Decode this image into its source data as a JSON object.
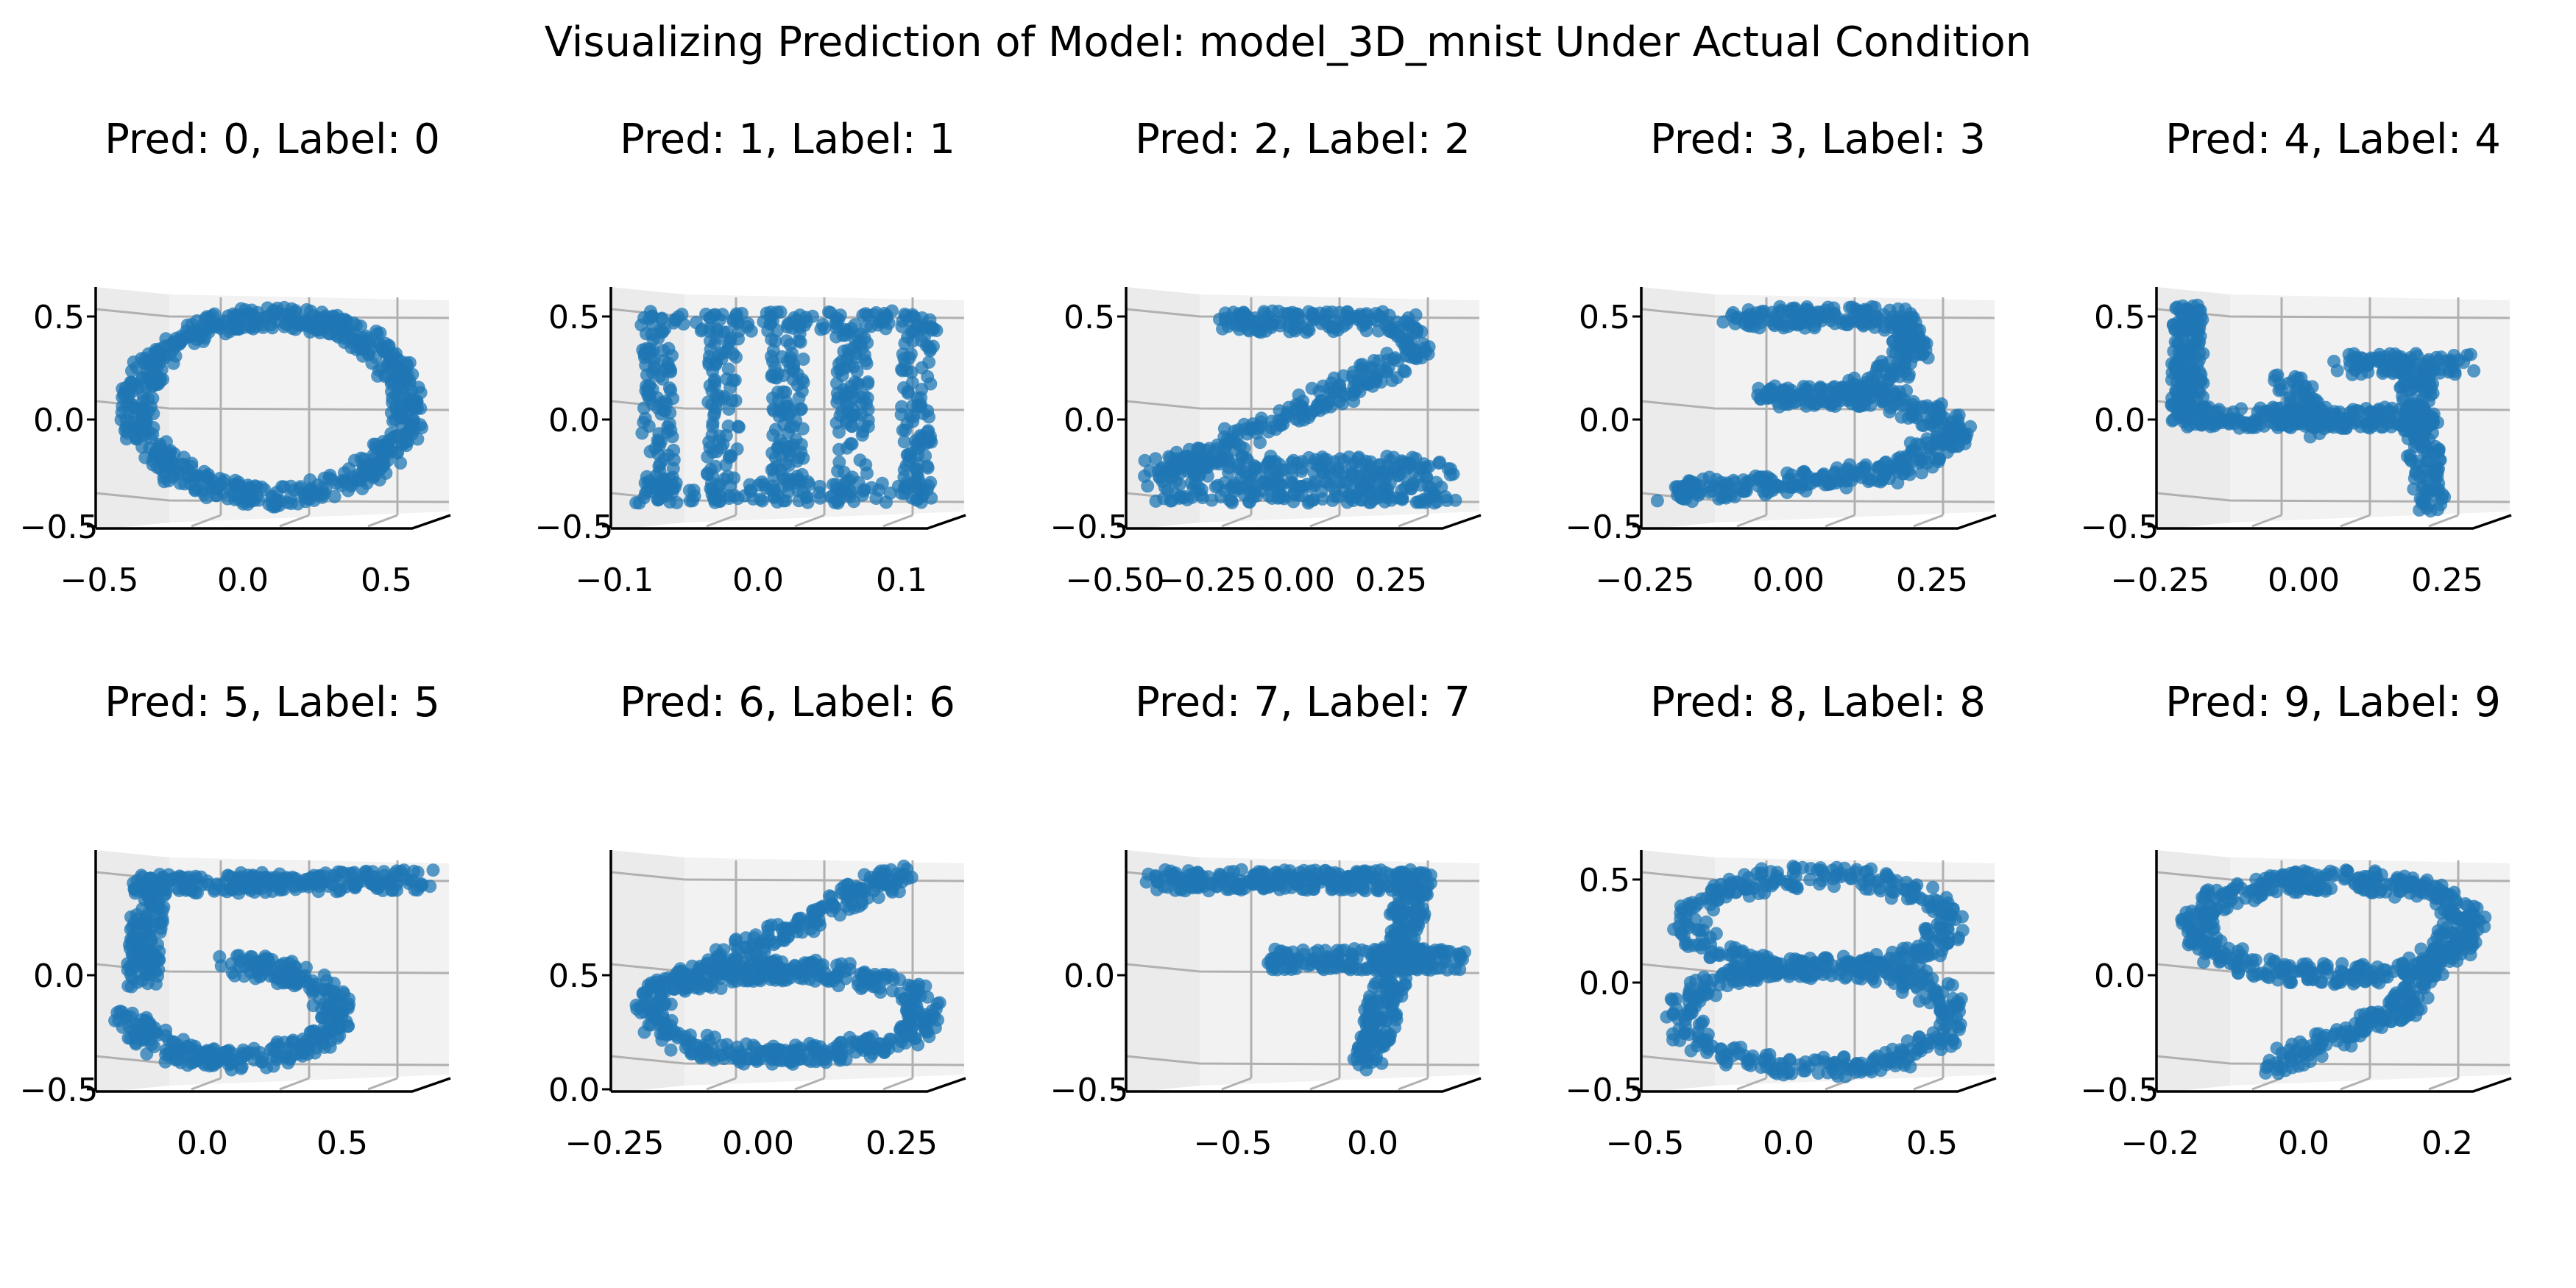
{
  "figure_title": "Visualizing Prediction of Model: model_3D_mnist Under Actual Condition",
  "colors": {
    "point": "#1f77b4",
    "pane_back": "#f2f2f2",
    "pane_side": "#ebebeb",
    "grid": "#b0b0b0",
    "axis": "#000000"
  },
  "chart_data": [
    {
      "type": "scatter",
      "projection": "3d",
      "digit_shape": "0",
      "title": "Pred: 0, Label: 0",
      "x_ticks": [
        "−0.5",
        "0.0",
        "0.5"
      ],
      "z_ticks": [
        "0.5",
        "0.0",
        "−0.5"
      ]
    },
    {
      "type": "scatter",
      "projection": "3d",
      "digit_shape": "1",
      "title": "Pred: 1, Label: 1",
      "x_ticks": [
        "−0.1",
        "0.0",
        "0.1"
      ],
      "z_ticks": [
        "0.5",
        "0.0",
        "−0.5"
      ]
    },
    {
      "type": "scatter",
      "projection": "3d",
      "digit_shape": "2",
      "title": "Pred: 2, Label: 2",
      "x_ticks": [
        "−0.50",
        "−0.25",
        "0.00",
        "0.25"
      ],
      "z_ticks": [
        "0.5",
        "0.0",
        "−0.5"
      ]
    },
    {
      "type": "scatter",
      "projection": "3d",
      "digit_shape": "3",
      "title": "Pred: 3, Label: 3",
      "x_ticks": [
        "−0.25",
        "0.00",
        "0.25"
      ],
      "z_ticks": [
        "0.5",
        "0.0",
        "−0.5"
      ]
    },
    {
      "type": "scatter",
      "projection": "3d",
      "digit_shape": "4",
      "title": "Pred: 4, Label: 4",
      "x_ticks": [
        "−0.25",
        "0.00",
        "0.25"
      ],
      "z_ticks": [
        "0.5",
        "0.0",
        "−0.5"
      ]
    },
    {
      "type": "scatter",
      "projection": "3d",
      "digit_shape": "5",
      "title": "Pred: 5, Label: 5",
      "x_ticks": [
        "0.0",
        "0.5"
      ],
      "z_ticks": [
        "0.0",
        "−0.5"
      ]
    },
    {
      "type": "scatter",
      "projection": "3d",
      "digit_shape": "6",
      "title": "Pred: 6, Label: 6",
      "x_ticks": [
        "−0.25",
        "0.00",
        "0.25"
      ],
      "z_ticks": [
        "0.5",
        "0.0"
      ]
    },
    {
      "type": "scatter",
      "projection": "3d",
      "digit_shape": "7",
      "title": "Pred: 7, Label: 7",
      "x_ticks": [
        "−0.5",
        "0.0"
      ],
      "z_ticks": [
        "0.0",
        "−0.5"
      ]
    },
    {
      "type": "scatter",
      "projection": "3d",
      "digit_shape": "8",
      "title": "Pred: 8, Label: 8",
      "x_ticks": [
        "−0.5",
        "0.0",
        "0.5"
      ],
      "z_ticks": [
        "0.5",
        "0.0",
        "−0.5"
      ]
    },
    {
      "type": "scatter",
      "projection": "3d",
      "digit_shape": "9",
      "title": "Pred: 9, Label: 9",
      "x_ticks": [
        "−0.2",
        "0.0",
        "0.2"
      ],
      "z_ticks": [
        "0.0",
        "−0.5"
      ]
    }
  ]
}
